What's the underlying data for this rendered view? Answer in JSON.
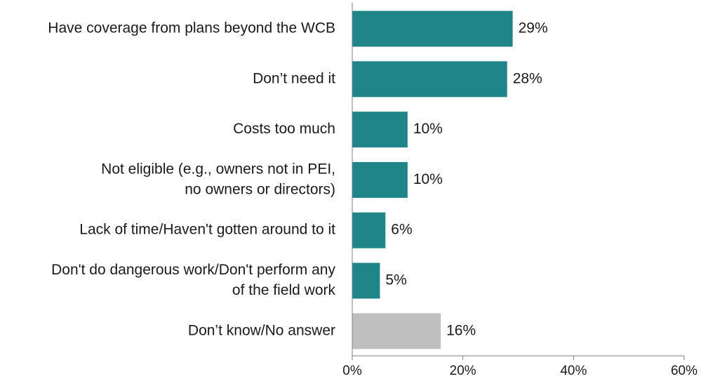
{
  "chart_data": {
    "type": "bar",
    "orientation": "horizontal",
    "categories": [
      [
        "Have coverage from plans beyond the WCB"
      ],
      [
        "Don’t need it"
      ],
      [
        "Costs too much"
      ],
      [
        "Not eligible (e.g., owners not in PEI,",
        "no owners or directors)"
      ],
      [
        "Lack of time/Haven't gotten around to it"
      ],
      [
        "Don't do dangerous work/Don't perform any",
        "of the field work"
      ],
      [
        "Don’t know/No answer"
      ]
    ],
    "values": [
      29,
      28,
      10,
      10,
      6,
      5,
      16
    ],
    "value_labels": [
      "29%",
      "28%",
      "10%",
      "10%",
      "6%",
      "5%",
      "16%"
    ],
    "bar_colors": [
      "#1f8589",
      "#1f8589",
      "#1f8589",
      "#1f8589",
      "#1f8589",
      "#1f8589",
      "#bfbfbf"
    ],
    "xlim": [
      0,
      60
    ],
    "x_ticks": [
      0,
      20,
      40,
      60
    ],
    "x_tick_labels": [
      "0%",
      "20%",
      "40%",
      "60%"
    ],
    "grid": false,
    "legend": "none",
    "title": "",
    "xlabel": "",
    "ylabel": ""
  }
}
